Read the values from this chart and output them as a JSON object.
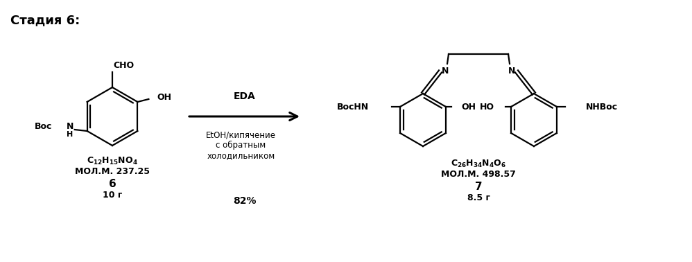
{
  "background_color": "#ffffff",
  "stage_label": "Стадия 6:",
  "reagent_above": "EDA",
  "reagent_below_lines": [
    "EtOH/кипячение",
    "с обратным",
    "холодильником"
  ],
  "yield_label": "82%",
  "reactant_mw_label": "МОЛ.М. 237.25",
  "reactant_number": "6",
  "reactant_mass": "10 г",
  "product_mw_label": "МОЛ.М. 498.57",
  "product_number": "7",
  "product_mass": "8.5 г"
}
